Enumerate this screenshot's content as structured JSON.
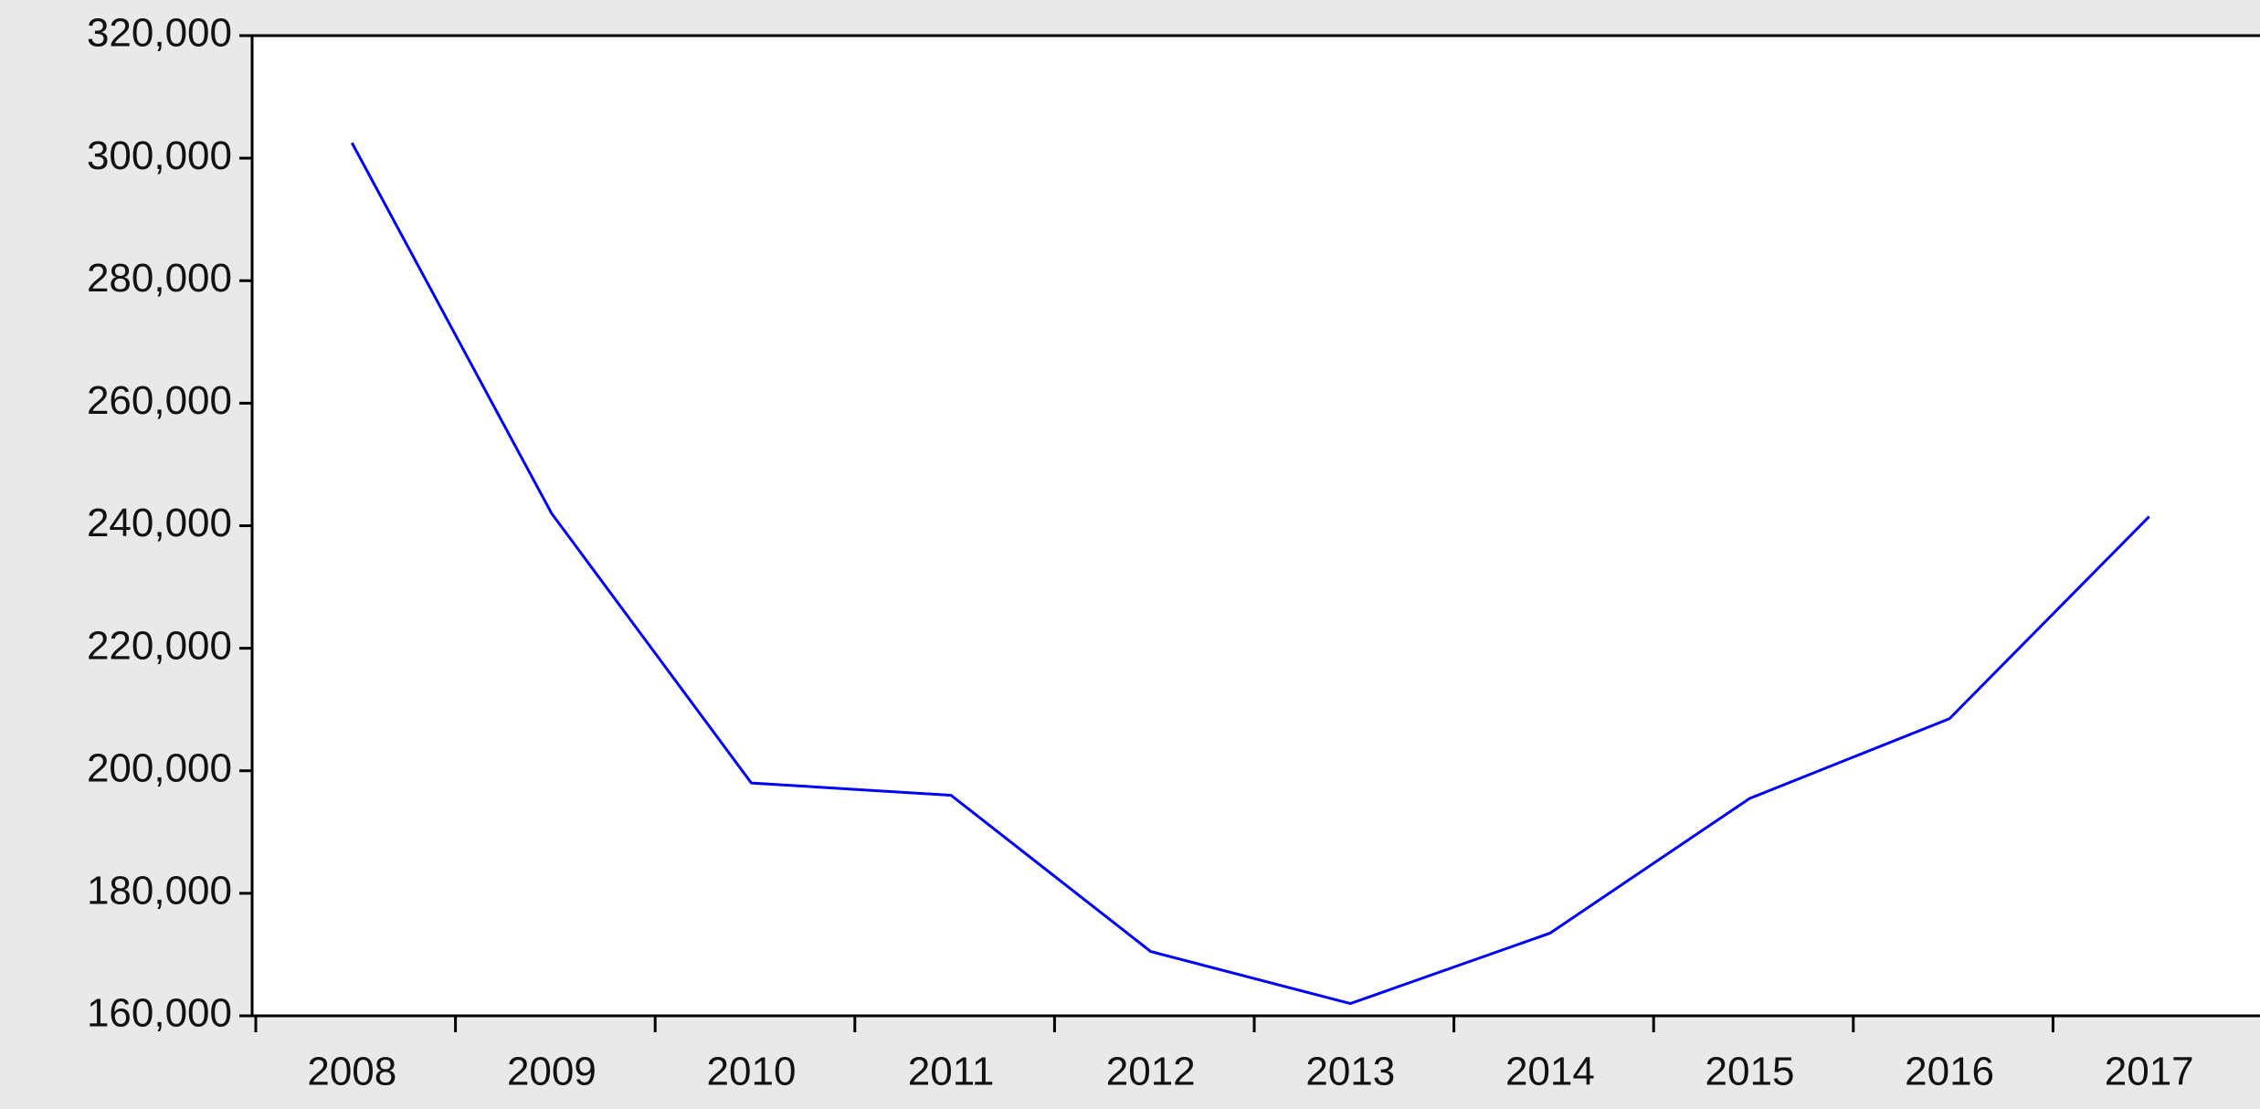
{
  "chart_data": {
    "type": "line",
    "categories": [
      "2008",
      "2009",
      "2010",
      "2011",
      "2012",
      "2013",
      "2014",
      "2015",
      "2016",
      "2017"
    ],
    "values": [
      302500,
      242000,
      198000,
      196000,
      170500,
      162000,
      173500,
      195500,
      208500,
      241500
    ],
    "color": "#0000ff",
    "ylim": [
      160000,
      320000
    ],
    "yticks": [
      {
        "value": 160000,
        "label": "160,000"
      },
      {
        "value": 180000,
        "label": "180,000"
      },
      {
        "value": 200000,
        "label": "200,000"
      },
      {
        "value": 220000,
        "label": "220,000"
      },
      {
        "value": 240000,
        "label": "240,000"
      },
      {
        "value": 260000,
        "label": "260,000"
      },
      {
        "value": 280000,
        "label": "280,000"
      },
      {
        "value": 300000,
        "label": "300,000"
      },
      {
        "value": 320000,
        "label": "320,000"
      }
    ],
    "grid": false
  }
}
